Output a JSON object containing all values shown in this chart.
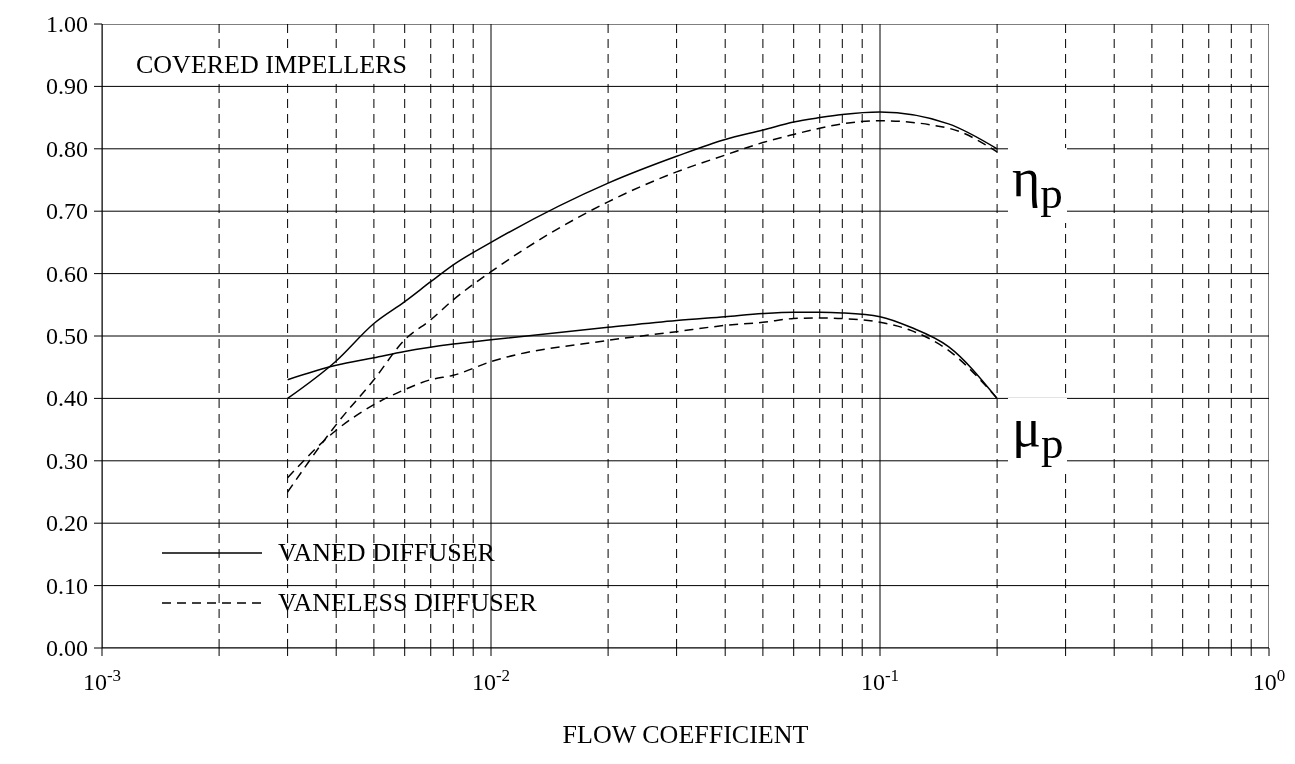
{
  "chart_data": {
    "type": "line",
    "xlabel": "FLOW COEFFICIENT",
    "log": "x",
    "grid": true,
    "legend": "bottom left",
    "marker": "none",
    "xlim": [
      0.001,
      1
    ],
    "ylim": [
      0,
      1
    ],
    "xticks": [
      {
        "value": 0.001,
        "label": "10$^{-3}$"
      },
      {
        "value": 0.002,
        "label": null
      },
      {
        "value": 0.003,
        "label": null
      },
      {
        "value": 0.004,
        "label": null
      },
      {
        "value": 0.005,
        "label": null
      },
      {
        "value": 0.006,
        "label": null
      },
      {
        "value": 0.007,
        "label": null
      },
      {
        "value": 0.008,
        "label": null
      },
      {
        "value": 0.009,
        "label": null
      },
      {
        "value": 0.01,
        "label": "10$^{-2}$"
      },
      {
        "value": 0.02,
        "label": null
      },
      {
        "value": 0.03,
        "label": null
      },
      {
        "value": 0.04,
        "label": null
      },
      {
        "value": 0.05,
        "label": null
      },
      {
        "value": 0.06,
        "label": null
      },
      {
        "value": 0.07,
        "label": null
      },
      {
        "value": 0.08,
        "label": null
      },
      {
        "value": 0.09,
        "label": null
      },
      {
        "value": 0.1,
        "label": "10$^{-1}$"
      },
      {
        "value": 0.2,
        "label": null
      },
      {
        "value": 0.3,
        "label": null
      },
      {
        "value": 0.4,
        "label": null
      },
      {
        "value": 0.5,
        "label": null
      },
      {
        "value": 0.6,
        "label": null
      },
      {
        "value": 0.7,
        "label": null
      },
      {
        "value": 0.8,
        "label": null
      },
      {
        "value": 0.9,
        "label": null
      },
      {
        "value": 1,
        "label": "10$^{0}$"
      }
    ],
    "yticks": [
      {
        "value": 0,
        "label": "0.00"
      },
      {
        "value": 0.1,
        "label": "0.10"
      },
      {
        "value": 0.2,
        "label": "0.20"
      },
      {
        "value": 0.3,
        "label": "0.30"
      },
      {
        "value": 0.4,
        "label": "0.40"
      },
      {
        "value": 0.5,
        "label": "0.50"
      },
      {
        "value": 0.6,
        "label": "0.60"
      },
      {
        "value": 0.7,
        "label": "0.70"
      },
      {
        "value": 0.8,
        "label": "0.80"
      },
      {
        "value": 0.9,
        "label": "0.90"
      },
      {
        "value": 1,
        "label": "1.00"
      }
    ],
    "series": [
      {
        "name": "VANED DIFFUSER",
        "color": "#000000",
        "line_style": "solid",
        "x": [
          0.003,
          0.004,
          0.005,
          0.006,
          0.007,
          0.008,
          0.01,
          0.02,
          0.03,
          0.04,
          0.05,
          0.06,
          0.07,
          0.08,
          0.1,
          0.15,
          0.2
        ],
        "values": [
          0.4,
          0.46,
          0.52,
          0.555,
          0.587,
          0.614,
          0.65,
          0.745,
          0.788,
          0.815,
          0.83,
          0.843,
          0.85,
          0.855,
          0.859,
          0.84,
          0.8
        ]
      },
      {
        "name": "VANELESS DIFFUSER",
        "color": "#000000",
        "line_style": "dashed",
        "x": [
          0.003,
          0.004,
          0.005,
          0.006,
          0.007,
          0.008,
          0.01,
          0.02,
          0.03,
          0.04,
          0.05,
          0.06,
          0.07,
          0.08,
          0.1,
          0.15,
          0.2
        ],
        "values": [
          0.25,
          0.358,
          0.43,
          0.494,
          0.526,
          0.558,
          0.603,
          0.715,
          0.763,
          0.79,
          0.81,
          0.823,
          0.833,
          0.84,
          0.845,
          0.833,
          0.795
        ]
      },
      {
        "color": "#000000",
        "line_style": "solid",
        "x": [
          0.003,
          0.004,
          0.005,
          0.006,
          0.008,
          0.01,
          0.02,
          0.03,
          0.04,
          0.05,
          0.06,
          0.07,
          0.08,
          0.1,
          0.12,
          0.15,
          0.2
        ],
        "values": [
          0.43,
          0.453,
          0.465,
          0.475,
          0.487,
          0.494,
          0.514,
          0.525,
          0.531,
          0.536,
          0.538,
          0.538,
          0.537,
          0.531,
          0.514,
          0.483,
          0.4
        ]
      },
      {
        "color": "#000000",
        "line_style": "dashed",
        "x": [
          0.003,
          0.004,
          0.005,
          0.006,
          0.007,
          0.008,
          0.01,
          0.02,
          0.03,
          0.04,
          0.05,
          0.06,
          0.07,
          0.08,
          0.1,
          0.12,
          0.15,
          0.2
        ],
        "values": [
          0.273,
          0.349,
          0.39,
          0.414,
          0.43,
          0.437,
          0.459,
          0.493,
          0.507,
          0.517,
          0.522,
          0.528,
          0.529,
          0.528,
          0.522,
          0.509,
          0.477,
          0.4
        ]
      }
    ],
    "annotations": [
      "COVERED IMPELLERS",
      "η$_{p}$",
      "μ$_{p}$"
    ]
  }
}
